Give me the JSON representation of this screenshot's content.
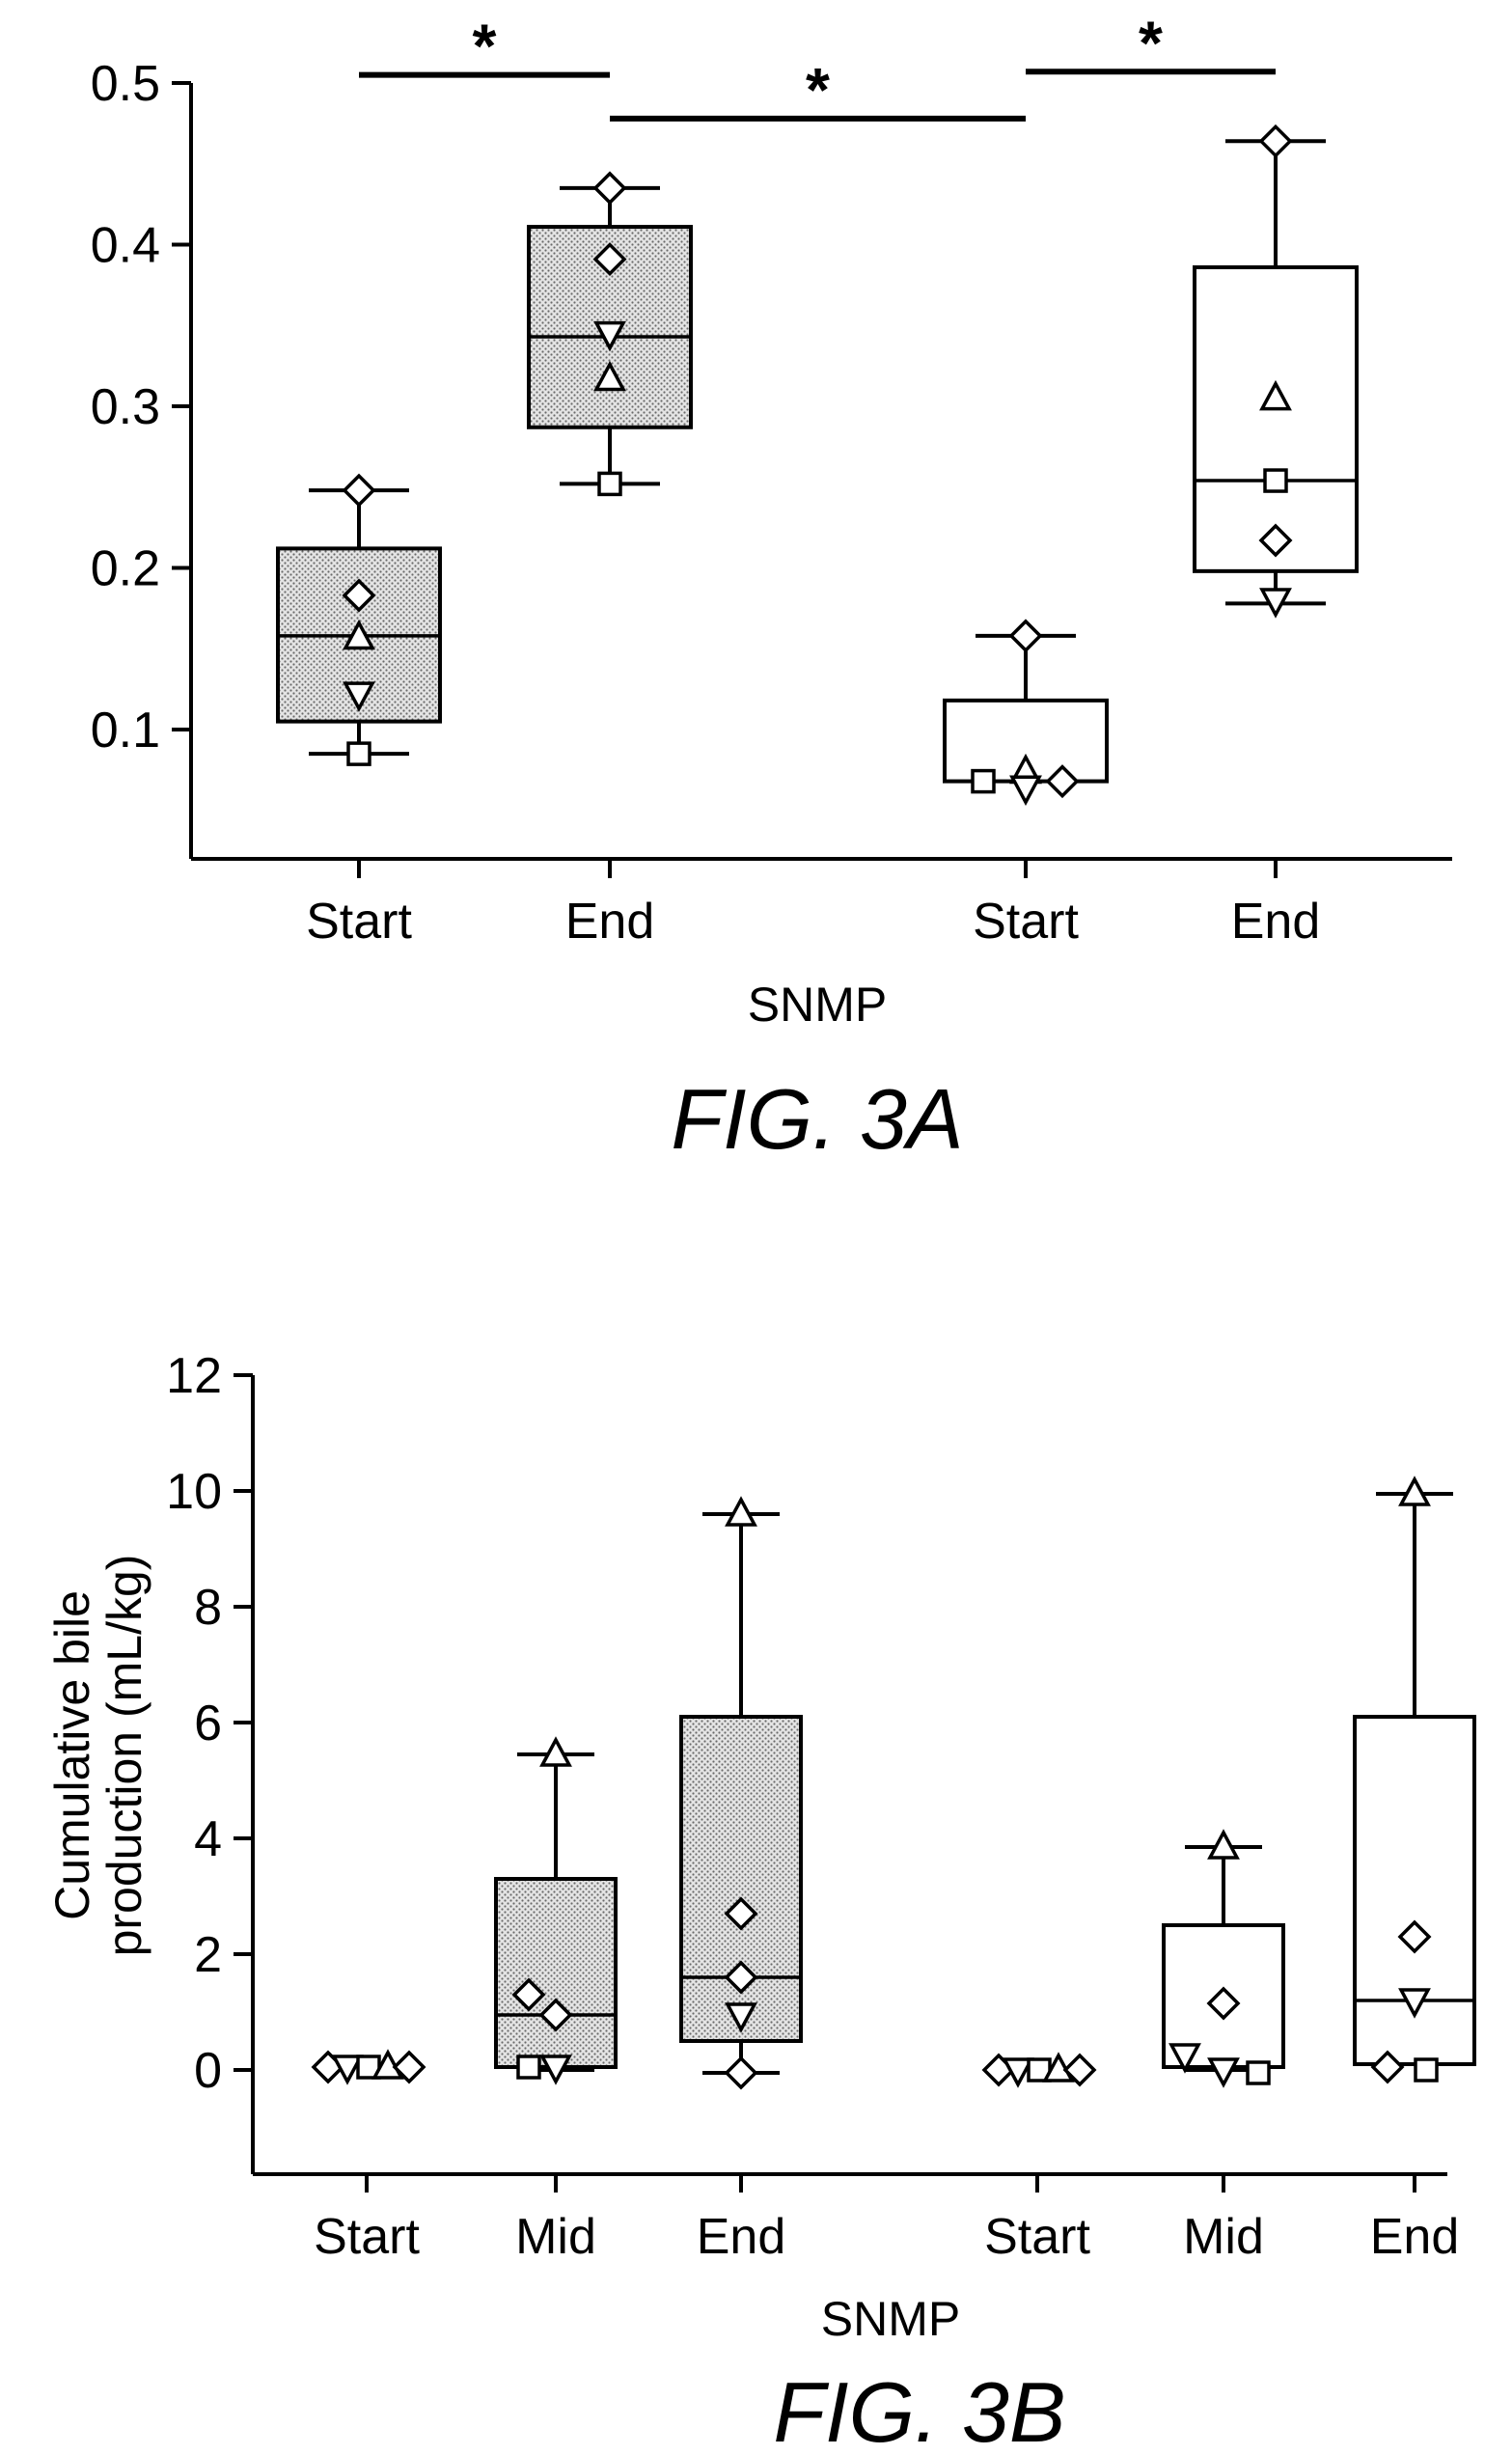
{
  "chart_data": [
    {
      "id": "fig3a",
      "type": "box",
      "caption": "FIG. 3A",
      "xlabel": "SNMP",
      "ylabel": "",
      "ylim": [
        0.02,
        0.5
      ],
      "yticks": [
        0.1,
        0.2,
        0.3,
        0.4,
        0.5
      ],
      "ytick_labels": [
        "0.1",
        "0.2",
        "0.3",
        "0.4",
        "0.5"
      ],
      "groups": [
        {
          "label": "Start",
          "fill": "stipple",
          "whisker_low": 0.085,
          "q1": 0.105,
          "median": 0.158,
          "q3": 0.212,
          "whisker_high": 0.248,
          "points": [
            {
              "shape": "diamond",
              "y": 0.248
            },
            {
              "shape": "diamond",
              "y": 0.183
            },
            {
              "shape": "triangle-up",
              "y": 0.157
            },
            {
              "shape": "triangle-down",
              "y": 0.122
            },
            {
              "shape": "square",
              "y": 0.085
            }
          ]
        },
        {
          "label": "End",
          "fill": "stipple",
          "whisker_low": 0.252,
          "q1": 0.287,
          "median": 0.343,
          "q3": 0.411,
          "whisker_high": 0.435,
          "points": [
            {
              "shape": "diamond",
              "y": 0.435
            },
            {
              "shape": "diamond",
              "y": 0.391
            },
            {
              "shape": "triangle-down",
              "y": 0.345
            },
            {
              "shape": "triangle-up",
              "y": 0.317
            },
            {
              "shape": "square",
              "y": 0.252
            }
          ]
        },
        {
          "label": "Start",
          "fill": "white",
          "whisker_low": 0.068,
          "q1": 0.068,
          "median": 0.068,
          "q3": 0.118,
          "whisker_high": 0.158,
          "points": [
            {
              "shape": "diamond",
              "y": 0.158
            },
            {
              "shape": "square",
              "y": 0.068
            },
            {
              "shape": "triangle-up",
              "y": 0.074
            },
            {
              "shape": "triangle-down",
              "y": 0.064
            },
            {
              "shape": "diamond",
              "y": 0.068
            }
          ]
        },
        {
          "label": "End",
          "fill": "white",
          "whisker_low": 0.178,
          "q1": 0.198,
          "median": 0.254,
          "q3": 0.386,
          "whisker_high": 0.464,
          "points": [
            {
              "shape": "diamond",
              "y": 0.464
            },
            {
              "shape": "triangle-up",
              "y": 0.305
            },
            {
              "shape": "square",
              "y": 0.254
            },
            {
              "shape": "diamond",
              "y": 0.217
            },
            {
              "shape": "triangle-down",
              "y": 0.18
            }
          ]
        }
      ],
      "significance": [
        {
          "from": 0,
          "to": 1,
          "label": "*",
          "y": 0.505
        },
        {
          "from": 1,
          "to": 2,
          "label": "*",
          "y": 0.478
        },
        {
          "from": 2,
          "to": 3,
          "label": "*",
          "y": 0.507
        }
      ]
    },
    {
      "id": "fig3b",
      "type": "box",
      "caption": "FIG. 3B",
      "xlabel": "SNMP",
      "ylabel": "Cumulative bile production (mL/kg)",
      "ylabel_lines": [
        "Cumulative bile",
        "production (mL/kg)"
      ],
      "ylim": [
        -1.8,
        12
      ],
      "yticks": [
        0,
        2,
        4,
        6,
        8,
        10,
        12
      ],
      "ytick_labels": [
        "0",
        "2",
        "4",
        "6",
        "8",
        "10",
        "12"
      ],
      "groups": [
        {
          "label": "Start",
          "fill": "stipple",
          "whisker_low": null,
          "q1": null,
          "median": null,
          "q3": null,
          "whisker_high": null,
          "points": [
            {
              "shape": "diamond",
              "y": 0.05
            },
            {
              "shape": "triangle-down",
              "y": 0.05
            },
            {
              "shape": "square",
              "y": 0.05
            },
            {
              "shape": "triangle-up",
              "y": 0.05
            },
            {
              "shape": "diamond",
              "y": 0.05
            }
          ]
        },
        {
          "label": "Mid",
          "fill": "stipple",
          "whisker_low": 0.0,
          "q1": 0.05,
          "median": 0.95,
          "q3": 3.3,
          "whisker_high": 5.45,
          "points": [
            {
              "shape": "triangle-up",
              "y": 5.45
            },
            {
              "shape": "diamond",
              "y": 1.3
            },
            {
              "shape": "diamond",
              "y": 0.95
            },
            {
              "shape": "square",
              "y": 0.05
            },
            {
              "shape": "triangle-down",
              "y": 0.05
            }
          ]
        },
        {
          "label": "End",
          "fill": "stipple",
          "whisker_low": -0.05,
          "q1": 0.5,
          "median": 1.6,
          "q3": 6.1,
          "whisker_high": 9.6,
          "points": [
            {
              "shape": "triangle-up",
              "y": 9.6
            },
            {
              "shape": "diamond",
              "y": 2.7
            },
            {
              "shape": "diamond",
              "y": 1.6
            },
            {
              "shape": "triangle-down",
              "y": 0.95
            },
            {
              "shape": "diamond",
              "y": -0.05
            }
          ]
        },
        {
          "label": "Start",
          "fill": "white",
          "whisker_low": null,
          "q1": null,
          "median": null,
          "q3": null,
          "whisker_high": null,
          "points": [
            {
              "shape": "diamond",
              "y": 0.0
            },
            {
              "shape": "triangle-down",
              "y": 0.0
            },
            {
              "shape": "square",
              "y": 0.0
            },
            {
              "shape": "triangle-up",
              "y": 0.0
            },
            {
              "shape": "diamond",
              "y": 0.0
            }
          ]
        },
        {
          "label": "Mid",
          "fill": "white",
          "whisker_low": 0.0,
          "q1": 0.05,
          "median": 0.05,
          "q3": 2.5,
          "whisker_high": 3.85,
          "points": [
            {
              "shape": "triangle-up",
              "y": 3.85
            },
            {
              "shape": "diamond",
              "y": 1.15
            },
            {
              "shape": "triangle-down",
              "y": 0.25
            },
            {
              "shape": "triangle-down",
              "y": 0.0
            },
            {
              "shape": "square",
              "y": -0.05
            }
          ]
        },
        {
          "label": "End",
          "fill": "white",
          "whisker_low": 0.1,
          "q1": 0.1,
          "median": 1.2,
          "q3": 6.1,
          "whisker_high": 9.95,
          "points": [
            {
              "shape": "triangle-up",
              "y": 9.95
            },
            {
              "shape": "diamond",
              "y": 2.3
            },
            {
              "shape": "triangle-down",
              "y": 1.2
            },
            {
              "shape": "diamond",
              "y": 0.05
            },
            {
              "shape": "square",
              "y": 0.0
            }
          ]
        }
      ],
      "significance": []
    }
  ]
}
